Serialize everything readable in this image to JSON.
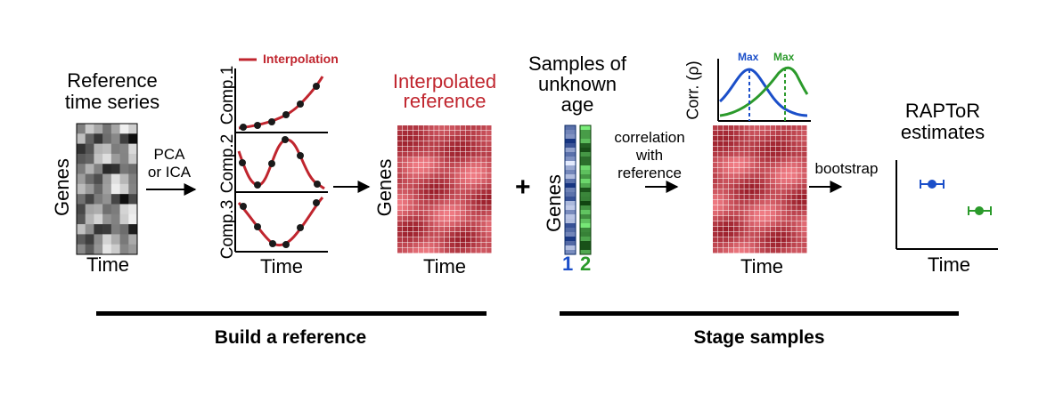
{
  "build": {
    "ref_title_line1": "Reference",
    "ref_title_line2": "time series",
    "genes": "Genes",
    "time": "Time",
    "pca_line1": "PCA",
    "pca_line2": "or ICA",
    "legend": "Interpolation",
    "comp1": "Comp.1",
    "comp2": "Comp.2",
    "comp3": "Comp.3",
    "interp_line1": "Interpolated",
    "interp_line2": "reference",
    "section_label": "Build a reference"
  },
  "stage": {
    "plus": "+",
    "samples_line1": "Samples of",
    "samples_line2": "unknown",
    "samples_line3": "age",
    "sample1": "1",
    "sample2": "2",
    "corr_line1": "correlation",
    "corr_line2": "with",
    "corr_line3": "reference",
    "corr_axis": "Corr. (ρ)",
    "max": "Max",
    "bootstrap": "bootstrap",
    "raptor_line1": "RAPToR",
    "raptor_line2": "estimates",
    "section_label": "Stage samples"
  },
  "colors": {
    "red": "#c0252e",
    "blue": "#1b4fc9",
    "green": "#2b9a2b",
    "heat_light": "#f07c84",
    "heat_dark": "#9a1e2a"
  }
}
